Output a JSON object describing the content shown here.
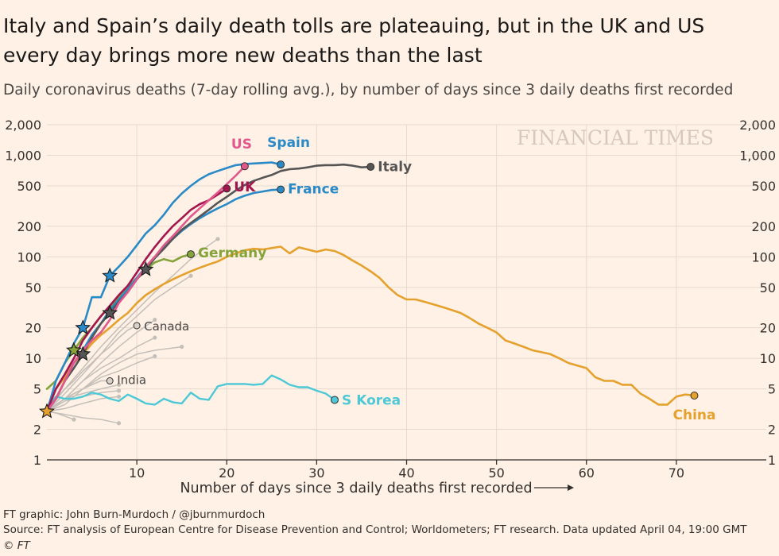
{
  "header": {
    "title": "Italy and Spain’s daily death tolls are plateauing, but in the UK and US every day brings more new deaths than the last",
    "subtitle": "Daily coronavirus deaths (7-day rolling avg.), by number of days since 3 daily deaths first recorded"
  },
  "footer": {
    "credit": "FT graphic: John Burn-Murdoch / @jburnmurdoch",
    "source": "Source: FT analysis of European Centre for Disease Prevention and Control; Worldometers; FT research. Data updated April 04, 19:00 GMT",
    "copyright": "© FT"
  },
  "chart_data": {
    "type": "line",
    "watermark": "FINANCIAL TIMES",
    "xlabel": "Number of days since 3 daily deaths first recorded",
    "ylabel": "",
    "y_scale": "log",
    "xlim": [
      0,
      80
    ],
    "ylim": [
      1,
      2000
    ],
    "x_ticks": [
      10,
      20,
      30,
      40,
      50,
      60,
      70
    ],
    "y_ticks": [
      1,
      2,
      5,
      10,
      20,
      50,
      100,
      200,
      500,
      1000,
      2000
    ],
    "y_tick_labels": [
      "1",
      "2",
      "5",
      "10",
      "20",
      "50",
      "100",
      "200",
      "500",
      "1,000",
      "2,000"
    ],
    "grid": true,
    "colors": {
      "background": "#fff1e5",
      "grid": "#e6d9ce",
      "axis": "#33302e",
      "italy": "#555555",
      "spain": "#2a8ac7",
      "france": "#2a8ac7",
      "us": "#e0588c",
      "uk": "#a3154e",
      "germany": "#84a33a",
      "china": "#e5a12d",
      "s_korea": "#4dc8d6",
      "others": "#c5bfb9"
    },
    "series": [
      {
        "name": "Italy",
        "color": "#555555",
        "width": 2.6,
        "x": [
          0,
          1,
          2,
          3,
          4,
          5,
          6,
          7,
          8,
          9,
          10,
          11,
          12,
          13,
          14,
          15,
          16,
          17,
          18,
          19,
          20,
          21,
          22,
          23,
          24,
          25,
          26,
          27,
          28,
          29,
          30,
          31,
          32,
          33,
          34,
          35,
          36
        ],
        "y": [
          3,
          4,
          6,
          8,
          11,
          16,
          22,
          28,
          36,
          45,
          60,
          75,
          97,
          120,
          150,
          185,
          215,
          250,
          290,
          340,
          390,
          450,
          510,
          560,
          600,
          640,
          700,
          730,
          740,
          760,
          790,
          800,
          800,
          810,
          790,
          760,
          770
        ],
        "end": "dot",
        "stars": [
          4,
          7,
          11
        ]
      },
      {
        "name": "Spain",
        "color": "#2a8ac7",
        "width": 2.6,
        "x": [
          0,
          1,
          2,
          3,
          4,
          5,
          6,
          7,
          8,
          9,
          10,
          11,
          12,
          13,
          14,
          15,
          16,
          17,
          18,
          19,
          20,
          21,
          22,
          23,
          24,
          25,
          26
        ],
        "y": [
          3,
          6,
          9,
          14,
          20,
          40,
          40,
          65,
          80,
          100,
          130,
          170,
          205,
          260,
          340,
          420,
          500,
          580,
          650,
          700,
          750,
          800,
          820,
          830,
          840,
          850,
          810
        ],
        "end": "dot",
        "stars": [
          4,
          7
        ]
      },
      {
        "name": "France",
        "color": "#2a8ac7",
        "width": 2.6,
        "x": [
          0,
          1,
          2,
          3,
          4,
          5,
          6,
          7,
          8,
          9,
          10,
          11,
          12,
          13,
          14,
          15,
          16,
          17,
          18,
          19,
          20,
          21,
          22,
          23,
          24,
          25,
          26
        ],
        "y": [
          3,
          4,
          6,
          9,
          12,
          17,
          22,
          30,
          38,
          48,
          62,
          80,
          100,
          125,
          150,
          180,
          210,
          240,
          270,
          300,
          330,
          370,
          400,
          425,
          440,
          455,
          460
        ],
        "end": "dot",
        "stars": []
      },
      {
        "name": "US",
        "color": "#e0588c",
        "width": 2.6,
        "x": [
          0,
          1,
          2,
          3,
          4,
          5,
          6,
          7,
          8,
          9,
          10,
          11,
          12,
          13,
          14,
          15,
          16,
          17,
          18,
          19,
          20,
          21,
          22
        ],
        "y": [
          3,
          4,
          6,
          9,
          12,
          15,
          18,
          24,
          35,
          45,
          60,
          80,
          100,
          130,
          160,
          200,
          250,
          300,
          360,
          430,
          520,
          630,
          780
        ],
        "end": "dot",
        "stars": []
      },
      {
        "name": "UK",
        "color": "#a3154e",
        "width": 2.6,
        "x": [
          0,
          1,
          2,
          3,
          4,
          5,
          6,
          7,
          8,
          9,
          10,
          11,
          12,
          13,
          14,
          15,
          16,
          17,
          18,
          19,
          20
        ],
        "y": [
          3,
          5,
          7,
          10,
          15,
          20,
          26,
          33,
          42,
          52,
          70,
          95,
          125,
          160,
          200,
          240,
          290,
          330,
          360,
          410,
          470
        ],
        "end": "dot",
        "stars": []
      },
      {
        "name": "Germany",
        "color": "#84a33a",
        "width": 2.6,
        "x": [
          0,
          1,
          2,
          3,
          4,
          5,
          6,
          7,
          8,
          9,
          10,
          11,
          12,
          13,
          14,
          15,
          16
        ],
        "y": [
          5,
          6,
          9,
          12,
          16,
          20,
          26,
          32,
          40,
          50,
          62,
          75,
          88,
          95,
          90,
          100,
          106
        ],
        "end": "dot",
        "stars": [
          3
        ]
      },
      {
        "name": "China",
        "color": "#e5a12d",
        "width": 2.6,
        "x": [
          0,
          1,
          2,
          3,
          4,
          5,
          6,
          7,
          8,
          9,
          10,
          11,
          12,
          13,
          14,
          15,
          16,
          17,
          18,
          19,
          20,
          21,
          22,
          23,
          24,
          25,
          26,
          27,
          28,
          29,
          30,
          31,
          32,
          33,
          34,
          35,
          36,
          37,
          38,
          39,
          40,
          41,
          42,
          43,
          44,
          45,
          46,
          47,
          48,
          49,
          50,
          51,
          52,
          53,
          54,
          55,
          56,
          57,
          58,
          59,
          60,
          61,
          62,
          63,
          64,
          65,
          66,
          67,
          68,
          69,
          70,
          71,
          72
        ],
        "y": [
          3,
          5,
          6.5,
          9,
          11,
          14,
          17,
          20,
          24,
          28,
          35,
          42,
          48,
          54,
          60,
          66,
          72,
          78,
          84,
          90,
          100,
          108,
          116,
          120,
          118,
          122,
          126,
          108,
          124,
          118,
          112,
          118,
          114,
          104,
          92,
          82,
          72,
          62,
          50,
          42,
          38,
          38,
          36,
          34,
          32,
          30,
          28,
          25,
          22,
          20,
          18,
          15,
          14,
          13,
          12,
          11.5,
          11,
          10,
          9,
          8.5,
          8,
          6.5,
          6,
          6,
          5.5,
          5.5,
          4.5,
          4,
          3.5,
          3.5,
          4.2,
          4.4,
          4.3
        ],
        "end": "dot",
        "stars": [
          0
        ]
      },
      {
        "name": "S Korea",
        "color": "#4dc8d6",
        "width": 2.4,
        "x": [
          0,
          1,
          2,
          3,
          4,
          5,
          6,
          7,
          8,
          9,
          10,
          11,
          12,
          13,
          14,
          15,
          16,
          17,
          18,
          19,
          20,
          21,
          22,
          23,
          24,
          25,
          26,
          27,
          28,
          29,
          30,
          31,
          32
        ],
        "y": [
          3.3,
          4.2,
          4,
          4,
          4.2,
          4.6,
          4.4,
          4,
          3.8,
          4.4,
          4,
          3.6,
          3.5,
          4,
          3.7,
          3.6,
          4.6,
          4,
          3.9,
          5.3,
          5.6,
          5.6,
          5.6,
          5.5,
          5.6,
          6.8,
          6.2,
          5.5,
          5.2,
          5.2,
          4.8,
          4.5,
          3.9
        ],
        "end": "dot",
        "stars": []
      },
      {
        "name": "Canada",
        "color": "#c5bfb9",
        "width": 1.6,
        "x": [
          0,
          1,
          2,
          3,
          4,
          5,
          6,
          7,
          8,
          9,
          10
        ],
        "y": [
          3,
          4,
          5,
          6,
          7.5,
          9,
          11,
          13,
          16,
          19,
          21
        ],
        "end": "dot",
        "stars": []
      },
      {
        "name": "India",
        "color": "#c5bfb9",
        "width": 1.6,
        "x": [
          0,
          1,
          2,
          3,
          4,
          5,
          6,
          7
        ],
        "y": [
          3,
          3.5,
          4,
          4.5,
          5,
          5.5,
          6,
          6
        ],
        "end": "dot",
        "stars": []
      }
    ],
    "other_countries": [
      {
        "x": [
          0,
          2,
          4,
          6,
          8,
          10,
          12,
          14,
          16,
          18,
          19
        ],
        "y": [
          3,
          5,
          8,
          13,
          20,
          30,
          45,
          65,
          95,
          130,
          150
        ]
      },
      {
        "x": [
          0,
          2,
          4,
          6,
          8,
          10,
          12,
          14,
          16
        ],
        "y": [
          3,
          4.5,
          7,
          11,
          18,
          26,
          38,
          50,
          65
        ]
      },
      {
        "x": [
          0,
          2,
          4,
          6,
          8,
          10,
          12
        ],
        "y": [
          3,
          4,
          6,
          9,
          13,
          18,
          24
        ]
      },
      {
        "x": [
          0,
          2,
          4,
          6,
          8,
          10,
          12,
          15
        ],
        "y": [
          3,
          4,
          5,
          7,
          9,
          11,
          12,
          13
        ]
      },
      {
        "x": [
          0,
          2,
          4,
          6,
          8,
          10,
          12
        ],
        "y": [
          3,
          3.5,
          5,
          6.5,
          7.5,
          9,
          10.5
        ]
      },
      {
        "x": [
          0,
          2,
          4,
          6,
          8
        ],
        "y": [
          3,
          4,
          4.5,
          5,
          5.5
        ]
      },
      {
        "x": [
          0,
          2,
          4,
          6,
          8
        ],
        "y": [
          3,
          3.8,
          4.2,
          4.6,
          4.8
        ]
      },
      {
        "x": [
          0,
          2,
          4,
          6,
          8
        ],
        "y": [
          3,
          3.2,
          3.6,
          4,
          4.2
        ]
      },
      {
        "x": [
          0,
          2,
          4,
          6,
          8
        ],
        "y": [
          3,
          2.8,
          2.6,
          2.5,
          2.3
        ]
      },
      {
        "x": [
          0,
          1,
          2,
          3
        ],
        "y": [
          3,
          2.9,
          2.7,
          2.5
        ]
      },
      {
        "x": [
          0,
          2,
          4,
          6,
          8,
          10,
          12
        ],
        "y": [
          3,
          4,
          6,
          8,
          10,
          13,
          16
        ]
      }
    ],
    "labels": [
      {
        "text": "US",
        "series": "US",
        "at_x": 20.5,
        "at_y": 1300,
        "color": "#e0588c",
        "bold": true
      },
      {
        "text": "Spain",
        "series": "Spain",
        "at_x": 24.5,
        "at_y": 1350,
        "color": "#2a8ac7",
        "bold": true
      },
      {
        "text": "Italy",
        "series": "Italy",
        "at_x": 36.8,
        "at_y": 780,
        "color": "#555555",
        "bold": true
      },
      {
        "text": "UK",
        "series": "UK",
        "at_x": 20.8,
        "at_y": 490,
        "color": "#a3154e",
        "bold": true
      },
      {
        "text": "France",
        "series": "France",
        "at_x": 26.8,
        "at_y": 470,
        "color": "#2a8ac7",
        "bold": true
      },
      {
        "text": "Germany",
        "series": "Germany",
        "at_x": 16.8,
        "at_y": 110,
        "color": "#84a33a",
        "bold": true
      },
      {
        "text": "Canada",
        "series": "Canada",
        "at_x": 10.8,
        "at_y": 21,
        "color": "#4a4745",
        "bold": false
      },
      {
        "text": "India",
        "series": "India",
        "at_x": 7.8,
        "at_y": 6.2,
        "color": "#4a4745",
        "bold": false
      },
      {
        "text": "S Korea",
        "series": "S Korea",
        "at_x": 32.8,
        "at_y": 3.9,
        "color": "#4dc8d6",
        "bold": true
      },
      {
        "text": "China",
        "series": "China",
        "at_x": 72,
        "at_y": 2.8,
        "color": "#e5a12d",
        "bold": true
      }
    ]
  }
}
